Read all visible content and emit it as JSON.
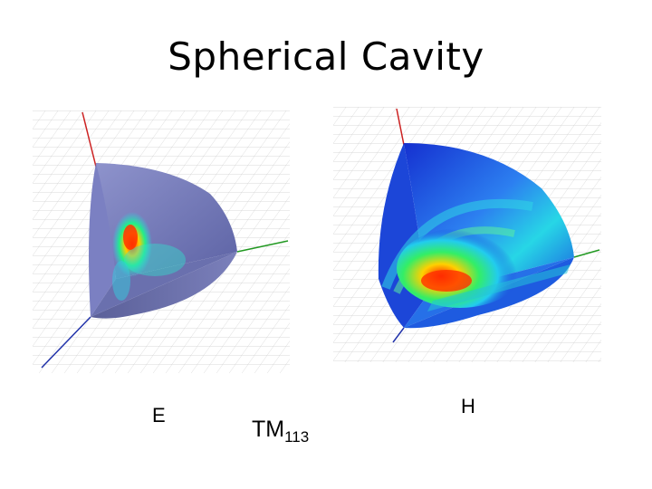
{
  "slide": {
    "title": "Spherical Cavity"
  },
  "labels": {
    "e_field": "E",
    "h_field": "H",
    "mode_main": "TM",
    "mode_sub": "113"
  },
  "colors": {
    "axis_z": "#cc2222",
    "axis_y": "#229922",
    "axis_x": "#2233aa",
    "e_surface": "#6f76b4",
    "h_surface": "#1a3ad8",
    "grid": "#cfcfcf"
  }
}
